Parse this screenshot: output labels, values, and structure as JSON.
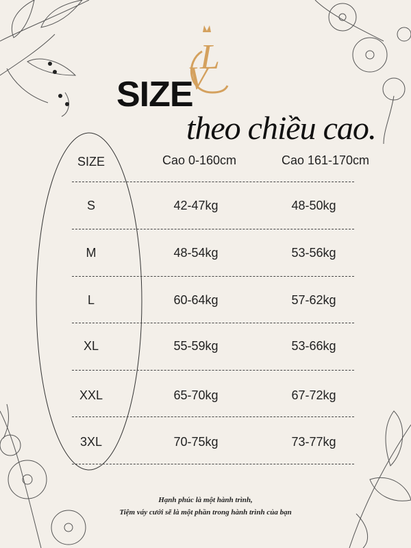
{
  "logo": {
    "lettering": "VLC",
    "color": "#d4a15e"
  },
  "title": "SIZE",
  "subtitle": "theo chiều cao.",
  "table": {
    "headers": [
      "SIZE",
      "Cao 0-160cm",
      "Cao 161-170cm"
    ],
    "rows": [
      [
        "S",
        "42-47kg",
        "48-50kg"
      ],
      [
        "M",
        "48-54kg",
        "53-56kg"
      ],
      [
        "L",
        "60-64kg",
        "57-62kg"
      ],
      [
        "XL",
        "55-59kg",
        "53-66kg"
      ],
      [
        "XXL",
        "65-70kg",
        "67-72kg"
      ],
      [
        "3XL",
        "70-75kg",
        "73-77kg"
      ]
    ]
  },
  "footer": {
    "line1": "Hạnh phúc là một hành trình,",
    "line2": "Tiệm váy cưới sẽ là một phần trong hành trình của bạn"
  },
  "colors": {
    "background": "#f3efe9",
    "text": "#111111",
    "accent": "#d4a15e"
  }
}
